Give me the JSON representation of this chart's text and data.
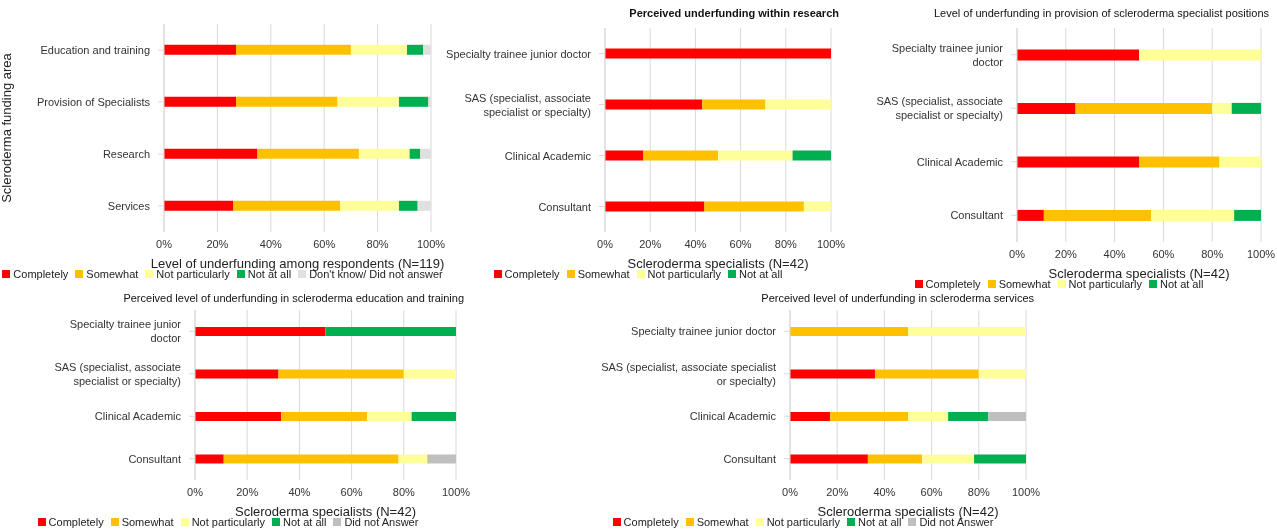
{
  "chart_data": [
    {
      "type": "bar",
      "orientation": "horizontal",
      "stacked": true,
      "ylabel": "Scleroderma funding area",
      "xlabel": "Level of underfunding among respondents (N=119)",
      "categories": [
        "Education and training",
        "Provision of Specialists",
        "Research",
        "Services"
      ],
      "series": [
        {
          "name": "Completely",
          "color": "#ff0000",
          "values": [
            27,
            27,
            35,
            26
          ]
        },
        {
          "name": "Somewhat",
          "color": "#ffc000",
          "values": [
            43,
            38,
            38,
            40
          ]
        },
        {
          "name": "Not particularly",
          "color": "#ffff99",
          "values": [
            21,
            23,
            19,
            22
          ]
        },
        {
          "name": "Not at all",
          "color": "#00b050",
          "values": [
            6,
            11,
            4,
            7
          ]
        },
        {
          "name": "Don't know/ Did not answer",
          "color": "#e0e0e0",
          "values": [
            3,
            1,
            4,
            5
          ]
        }
      ],
      "xlim": [
        0,
        100
      ],
      "xticks": [
        {
          "value": 0,
          "label": "0%"
        },
        {
          "value": 20,
          "label": "20%"
        },
        {
          "value": 40,
          "label": "40%"
        },
        {
          "value": 60,
          "label": "60%"
        },
        {
          "value": 80,
          "label": "80%"
        },
        {
          "value": 100,
          "label": "100%"
        }
      ],
      "grid": "x",
      "legend": "bottom"
    },
    {
      "type": "bar",
      "orientation": "horizontal",
      "stacked": true,
      "title": "Perceived underfunding within research",
      "xlabel": "Scleroderma specialists (N=42)",
      "categories": [
        "Specialty trainee junior doctor",
        "SAS (specialist, associate specialist or specialty)",
        "Clinical Academic",
        "Consultant"
      ],
      "series": [
        {
          "name": "Completely",
          "color": "#ff0000",
          "values": [
            100,
            43,
            17,
            44
          ]
        },
        {
          "name": "Somewhat",
          "color": "#ffc000",
          "values": [
            0,
            28,
            33,
            44
          ]
        },
        {
          "name": "Not particularly",
          "color": "#ffff99",
          "values": [
            0,
            29,
            33,
            12
          ]
        },
        {
          "name": "Not at all",
          "color": "#00b050",
          "values": [
            0,
            0,
            17,
            0
          ]
        }
      ],
      "xlim": [
        0,
        100
      ],
      "xticks": [
        {
          "value": 0,
          "label": "0%"
        },
        {
          "value": 20,
          "label": "20%"
        },
        {
          "value": 40,
          "label": "40%"
        },
        {
          "value": 60,
          "label": "60%"
        },
        {
          "value": 80,
          "label": "80%"
        },
        {
          "value": 100,
          "label": "100%"
        }
      ],
      "grid": "x",
      "legend": "bottom"
    },
    {
      "type": "bar",
      "orientation": "horizontal",
      "stacked": true,
      "title": "Level of underfunding  in provision of scleroderma specialist positions",
      "xlabel": "Scleroderma specialists (N=42)",
      "categories": [
        "Specialty trainee junior doctor",
        "SAS (specialist, associate specialist or specialty)",
        "Clinical Academic",
        "Consultant"
      ],
      "series": [
        {
          "name": "Completely",
          "color": "#ff0000",
          "values": [
            50,
            24,
            50,
            11
          ]
        },
        {
          "name": "Somewhat",
          "color": "#ffc000",
          "values": [
            0,
            56,
            33,
            44
          ]
        },
        {
          "name": "Not particularly",
          "color": "#ffff99",
          "values": [
            50,
            8,
            17,
            34
          ]
        },
        {
          "name": "Not at all",
          "color": "#00b050",
          "values": [
            0,
            12,
            0,
            11
          ]
        }
      ],
      "xlim": [
        0,
        100
      ],
      "xticks": [
        {
          "value": 0,
          "label": "0%"
        },
        {
          "value": 20,
          "label": "20%"
        },
        {
          "value": 40,
          "label": "40%"
        },
        {
          "value": 60,
          "label": "60%"
        },
        {
          "value": 80,
          "label": "80%"
        },
        {
          "value": 100,
          "label": "100%"
        }
      ],
      "grid": "x",
      "legend": "bottom"
    },
    {
      "type": "bar",
      "orientation": "horizontal",
      "stacked": true,
      "title": "Perceived level of underfunding  in scleroderma education and training",
      "xlabel": "Scleroderma specialists (N=42)",
      "categories": [
        "Specialty trainee junior doctor",
        "SAS (specialist, associate specialist or specialty)",
        "Clinical Academic",
        "Consultant"
      ],
      "series": [
        {
          "name": "Completely",
          "color": "#ff0000",
          "values": [
            50,
            32,
            33,
            11
          ]
        },
        {
          "name": "Somewhat",
          "color": "#ffc000",
          "values": [
            0,
            48,
            33,
            67
          ]
        },
        {
          "name": "Not particularly",
          "color": "#ffff99",
          "values": [
            0,
            20,
            17,
            11
          ]
        },
        {
          "name": "Not at all",
          "color": "#00b050",
          "values": [
            50,
            0,
            17,
            0
          ]
        },
        {
          "name": "Did not Answer",
          "color": "#bfbfbf",
          "values": [
            0,
            0,
            0,
            11
          ]
        }
      ],
      "xlim": [
        0,
        100
      ],
      "xticks": [
        {
          "value": 0,
          "label": "0%"
        },
        {
          "value": 20,
          "label": "20%"
        },
        {
          "value": 40,
          "label": "40%"
        },
        {
          "value": 60,
          "label": "60%"
        },
        {
          "value": 80,
          "label": "80%"
        },
        {
          "value": 100,
          "label": "100%"
        }
      ],
      "grid": "x",
      "legend": "bottom"
    },
    {
      "type": "bar",
      "orientation": "horizontal",
      "stacked": true,
      "title": "Perceived level of underfunding  in scleroderma services",
      "xlabel": "Scleroderma specialists (N=42)",
      "categories": [
        "Specialty trainee junior doctor",
        "SAS (specialist, associate specialist or specialty)",
        "Clinical Academic",
        "Consultant"
      ],
      "series": [
        {
          "name": "Completely",
          "color": "#ff0000",
          "values": [
            0,
            36,
            17,
            33
          ]
        },
        {
          "name": "Somewhat",
          "color": "#ffc000",
          "values": [
            50,
            44,
            33,
            23
          ]
        },
        {
          "name": "Not particularly",
          "color": "#ffff99",
          "values": [
            50,
            20,
            17,
            22
          ]
        },
        {
          "name": "Not at all",
          "color": "#00b050",
          "values": [
            0,
            0,
            17,
            22
          ]
        },
        {
          "name": "Did not Answer",
          "color": "#bfbfbf",
          "values": [
            0,
            0,
            16,
            0
          ]
        }
      ],
      "xlim": [
        0,
        100
      ],
      "xticks": [
        {
          "value": 0,
          "label": "0%"
        },
        {
          "value": 20,
          "label": "20%"
        },
        {
          "value": 40,
          "label": "40%"
        },
        {
          "value": 60,
          "label": "60%"
        },
        {
          "value": 80,
          "label": "80%"
        },
        {
          "value": 100,
          "label": "100%"
        }
      ],
      "grid": "x",
      "legend": "bottom"
    }
  ]
}
